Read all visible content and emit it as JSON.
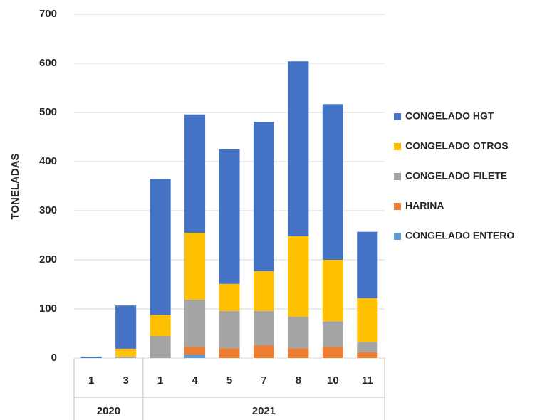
{
  "chart_data": {
    "type": "stacked_bar",
    "y_label": "TONELADAS",
    "groups": [
      {
        "name": "2020",
        "categories": [
          "1",
          "3"
        ]
      },
      {
        "name": "2021",
        "categories": [
          "1",
          "4",
          "5",
          "7",
          "8",
          "10",
          "11"
        ]
      }
    ],
    "series": [
      {
        "name": "CONGELADO ENTERO",
        "color": "#5b9bd5",
        "values": [
          0,
          0,
          0,
          7,
          0,
          0,
          0,
          0,
          0
        ]
      },
      {
        "name": "HARINA",
        "color": "#ed7d31",
        "values": [
          0,
          0,
          0,
          16,
          20,
          26,
          20,
          23,
          12
        ]
      },
      {
        "name": "CONGELADO FILETE",
        "color": "#a5a5a5",
        "values": [
          0,
          3,
          45,
          96,
          76,
          70,
          64,
          52,
          21
        ]
      },
      {
        "name": "CONGELADO OTROS",
        "color": "#ffc000",
        "values": [
          0,
          16,
          43,
          136,
          55,
          81,
          164,
          125,
          89
        ]
      },
      {
        "name": "CONGELADO HGT",
        "color": "#4472c4",
        "values": [
          3,
          88,
          277,
          241,
          274,
          304,
          356,
          317,
          135
        ]
      }
    ],
    "ylim": [
      0,
      700
    ],
    "yticks": [
      0,
      100,
      200,
      300,
      400,
      500,
      600,
      700
    ],
    "grid": true,
    "legend": "right"
  }
}
